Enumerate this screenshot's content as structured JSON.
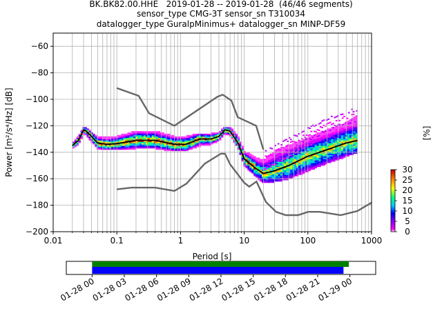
{
  "title_lines": [
    "BK.BK82.00.HHE   2019-01-28 -- 2019-01-28  (46/46 segments)",
    "sensor_type CMG-3T sensor_sn T310034",
    "datalogger_type GuralpMinimus+ datalogger_sn MINP-DF59"
  ],
  "chart_data": {
    "type": "heatmap",
    "xlabel": "Period [s]",
    "ylabel": "Power [m²/s⁴/Hz] [dB]",
    "xscale": "log",
    "xlim": [
      0.01,
      1000
    ],
    "ylim": [
      -200,
      -50
    ],
    "xticks": [
      0.01,
      0.1,
      1,
      10,
      100,
      1000
    ],
    "xtick_labels": [
      "0.01",
      "0.1",
      "1",
      "10",
      "100",
      "1000"
    ],
    "yticks": [
      -200,
      -180,
      -160,
      -140,
      -120,
      -100,
      -80,
      -60
    ],
    "ytick_labels": [
      "−200",
      "−180",
      "−160",
      "−140",
      "−120",
      "−100",
      "−80",
      "−60"
    ],
    "grid": true,
    "colorbar": {
      "label": "[%]",
      "min": 0,
      "max": 30,
      "ticks": [
        0,
        5,
        10,
        15,
        20,
        25,
        30
      ],
      "tick_labels": [
        "0",
        "5",
        "10",
        "15",
        "20",
        "25",
        "30"
      ]
    },
    "noise_model_high": {
      "periods": [
        0.1,
        0.22,
        0.32,
        0.8,
        3.8,
        4.6,
        6.3,
        7.9,
        15.4,
        20
      ],
      "power": [
        -91.5,
        -97.4,
        -110.5,
        -120,
        -98,
        -96.5,
        -101,
        -113.5,
        -120,
        -138
      ]
    },
    "noise_model_low": {
      "periods": [
        0.1,
        0.17,
        0.4,
        0.8,
        1.24,
        2.4,
        4.3,
        5,
        6,
        10,
        12,
        15.6,
        21.9,
        31.6,
        45,
        70,
        101,
        154,
        328,
        600,
        1000
      ],
      "power": [
        -168,
        -166.7,
        -166.7,
        -169.2,
        -163.7,
        -148.6,
        -141.1,
        -141.1,
        -149,
        -163,
        -166,
        -162.1,
        -177.5,
        -185,
        -187.5,
        -187.5,
        -185,
        -185,
        -187.5,
        -184.4,
        -178
      ]
    },
    "median": {
      "periods": [
        0.02,
        0.025,
        0.03,
        0.033,
        0.04,
        0.05,
        0.07,
        0.1,
        0.2,
        0.4,
        0.8,
        1.2,
        2,
        3,
        4,
        5,
        6,
        8,
        10,
        15,
        20,
        30,
        50,
        100,
        200,
        400,
        600
      ],
      "power": [
        -135,
        -131,
        -123,
        -124,
        -128,
        -133,
        -134,
        -133.5,
        -131,
        -131,
        -134,
        -134,
        -130,
        -130,
        -128,
        -123,
        -124,
        -133,
        -145,
        -152,
        -156,
        -154,
        -150,
        -143,
        -138,
        -133,
        -131
      ]
    },
    "psd_band": {
      "periods": [
        0.02,
        0.025,
        0.03,
        0.033,
        0.04,
        0.05,
        0.07,
        0.1,
        0.2,
        0.4,
        0.8,
        1.2,
        2,
        3,
        4,
        5,
        6,
        8,
        10,
        15,
        20,
        30,
        50,
        100,
        200,
        400,
        600
      ],
      "low": [
        -137,
        -134,
        -126,
        -127,
        -132,
        -137,
        -138,
        -138,
        -137,
        -137,
        -139,
        -139,
        -135,
        -134,
        -131,
        -126,
        -127,
        -137,
        -150,
        -158,
        -163,
        -162,
        -160,
        -154,
        -148,
        -143,
        -140
      ],
      "high": [
        -133,
        -128,
        -121,
        -121,
        -125,
        -128,
        -129,
        -128,
        -124,
        -124,
        -128,
        -128,
        -126,
        -126,
        -125,
        -121,
        -121,
        -128,
        -139,
        -144,
        -146,
        -139,
        -135,
        -129,
        -123,
        -118,
        -112
      ]
    },
    "outlier_trend": {
      "periods": [
        20,
        40,
        80,
        160,
        320,
        600
      ],
      "power": [
        -140,
        -132,
        -124,
        -117,
        -110,
        -107
      ]
    },
    "timeline": {
      "tick_labels": [
        "01-28 00",
        "01-28 03",
        "01-28 06",
        "01-28 09",
        "01-28 12",
        "01-28 15",
        "01-28 18",
        "01-28 21",
        "01-29 00"
      ],
      "range_hours": [
        -2.4,
        26.4
      ],
      "data_coverage_hours": [
        0,
        23.9
      ],
      "psd_coverage_hours": [
        0,
        23.4
      ]
    }
  }
}
